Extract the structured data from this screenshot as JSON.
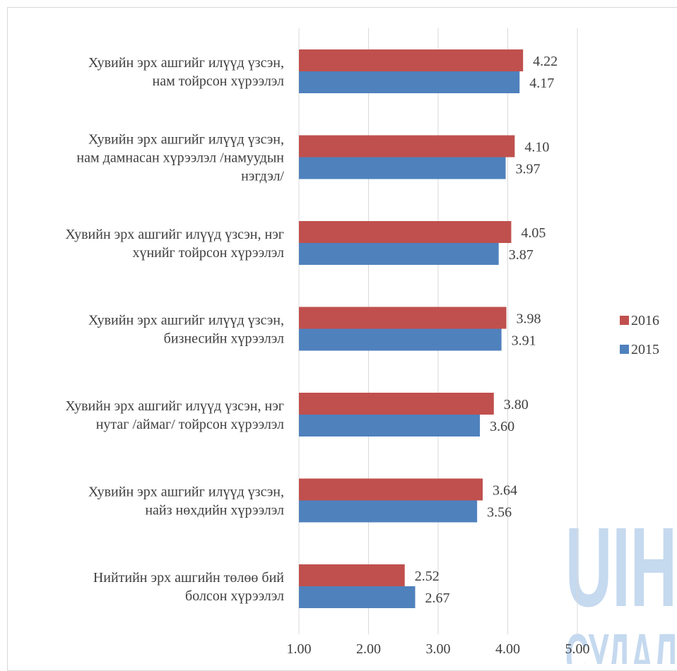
{
  "chart_data": {
    "type": "bar",
    "orientation": "horizontal",
    "categories": [
      [
        "Хувийн эрх ашгийг илүүд үзсэн,",
        "нам тойрсон хүрээлэл"
      ],
      [
        "Хувийн эрх ашгийг илүүд үзсэн,",
        "нам дамнасан хүрээлэл /намуудын",
        "нэгдэл/"
      ],
      [
        "Хувийн эрх ашгийг илүүд үзсэн, нэг",
        "хүнийг тойрсон хүрээлэл"
      ],
      [
        "Хувийн эрх ашгийг илүүд үзсэн,",
        "бизнесийн хүрээлэл"
      ],
      [
        "Хувийн эрх ашгийг илүүд үзсэн, нэг",
        "нутаг /аймаг/ тойрсон хүрээлэл"
      ],
      [
        "Хувийн эрх ашгийг илүүд үзсэн,",
        "найз нөхдийн хүрээлэл"
      ],
      [
        "Нийтийн эрх ашгийн төлөө бий",
        "болсон хүрээлэл"
      ]
    ],
    "series": [
      {
        "name": "2016",
        "color": "#c0504d",
        "values": [
          4.22,
          4.1,
          4.05,
          3.98,
          3.8,
          3.64,
          2.52
        ],
        "labels": [
          "4.22",
          "4.10",
          "4.05",
          "3.98",
          "3.80",
          "3.64",
          "2.52"
        ]
      },
      {
        "name": "2015",
        "color": "#4f81bd",
        "values": [
          4.17,
          3.97,
          3.87,
          3.91,
          3.6,
          3.56,
          2.67
        ],
        "labels": [
          "4.17",
          "3.97",
          "3.87",
          "3.91",
          "3.60",
          "3.56",
          "2.67"
        ]
      }
    ],
    "xlim": [
      1,
      5
    ],
    "xticks": [
      "1.00",
      "2.00",
      "3.00",
      "4.00",
      "5.00"
    ],
    "grid": true,
    "legend_position": "right",
    "title": "",
    "xlabel": "",
    "ylabel": ""
  },
  "watermark": {
    "line1": "UIH",
    "line2": "СУДАЛ",
    "color": "#c5d9ef"
  }
}
